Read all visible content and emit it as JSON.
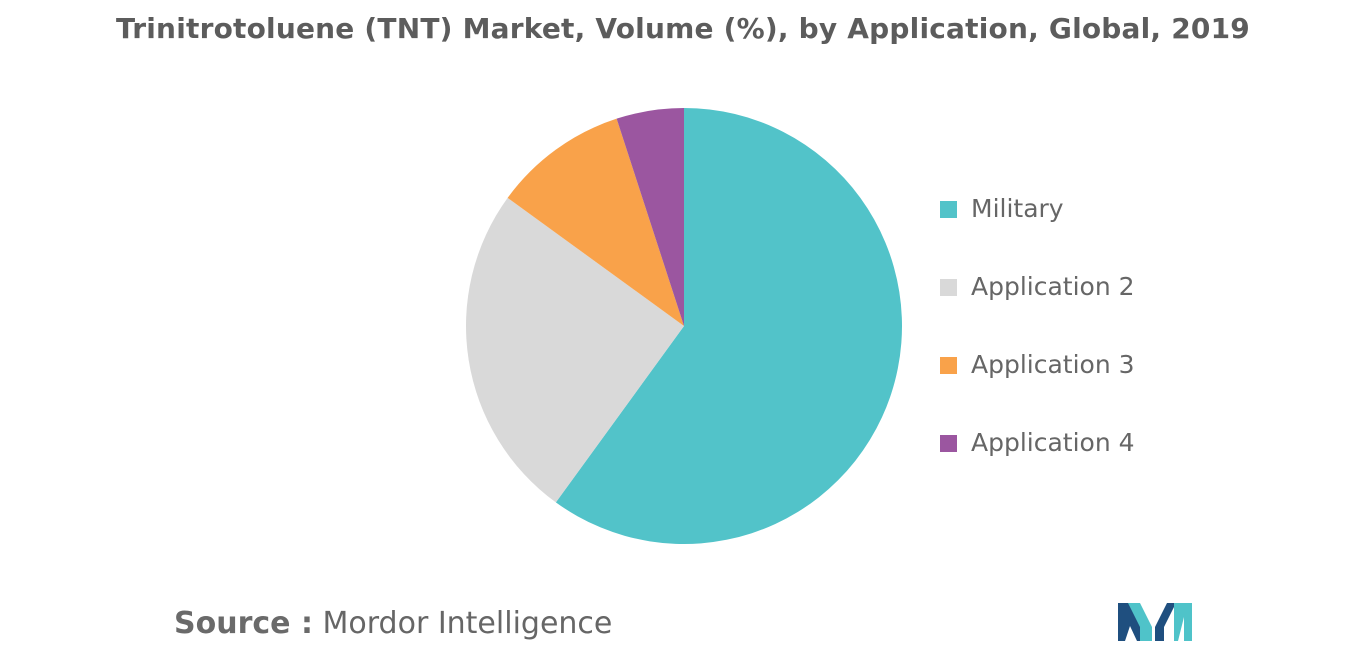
{
  "title": "Trinitrotoluene (TNT) Market, Volume (%), by Application, Global, 2019",
  "source": {
    "key": "Source :",
    "value": "Mordor Intelligence"
  },
  "logo": {
    "icon": "mordor-intelligence-logo-icon",
    "colors": [
      "#1f4f7f",
      "#4fc3c9"
    ]
  },
  "chart_data": {
    "type": "pie",
    "title": "Trinitrotoluene (TNT) Market, Volume (%), by Application, Global, 2019",
    "categories": [
      "Military",
      "Application 2",
      "Application 3",
      "Application 4"
    ],
    "values": [
      60,
      25,
      10,
      5
    ],
    "colors": [
      "#52c3c9",
      "#d9d9d9",
      "#f9a24a",
      "#9b56a0"
    ],
    "start": "12 o'clock",
    "direction": "clockwise",
    "legend_position": "right",
    "data_labels": false
  }
}
